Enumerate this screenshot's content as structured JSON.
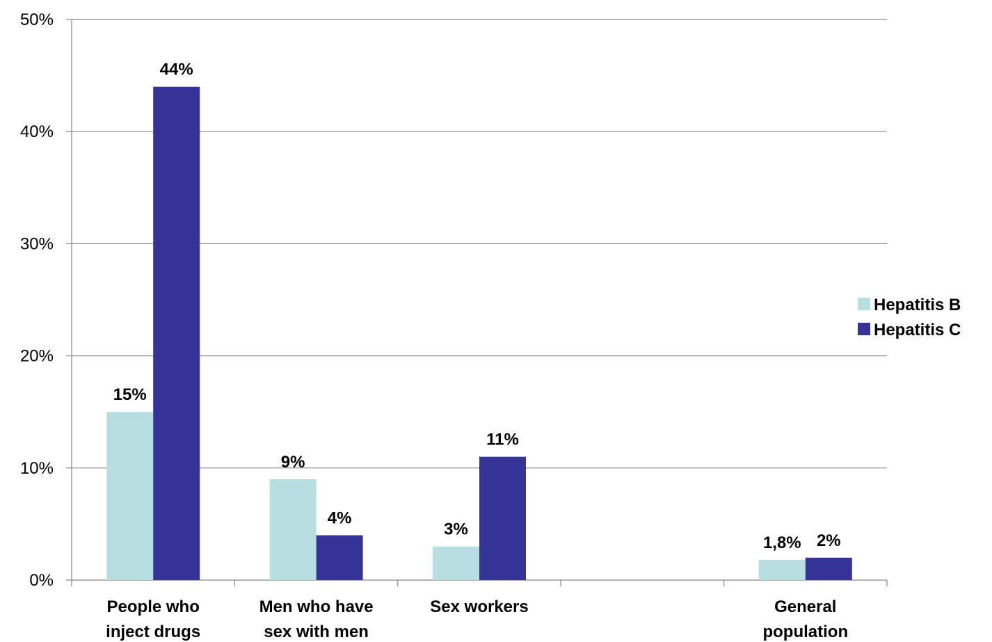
{
  "chart_data": {
    "type": "bar",
    "categories": [
      [
        "People who",
        "inject drugs"
      ],
      [
        "Men who have",
        "sex with men"
      ],
      [
        "Sex workers"
      ],
      [
        ""
      ],
      [
        "General",
        "population"
      ]
    ],
    "series": [
      {
        "name": "Hepatitis B",
        "color": "#b7dfe0",
        "values": [
          15,
          9,
          3,
          null,
          1.8
        ],
        "labels": [
          "15%",
          "9%",
          "3%",
          "",
          "1,8%"
        ]
      },
      {
        "name": "Hepatitis C",
        "color": "#363497",
        "values": [
          44,
          4,
          11,
          null,
          2
        ],
        "labels": [
          "44%",
          "4%",
          "11%",
          "",
          "2%"
        ]
      }
    ],
    "ylim": [
      0,
      50
    ],
    "yticks": [
      0,
      10,
      20,
      30,
      40,
      50
    ],
    "ytick_labels": [
      "0%",
      "10%",
      "20%",
      "30%",
      "40%",
      "50%"
    ],
    "grid": true,
    "legend_position": "right"
  }
}
